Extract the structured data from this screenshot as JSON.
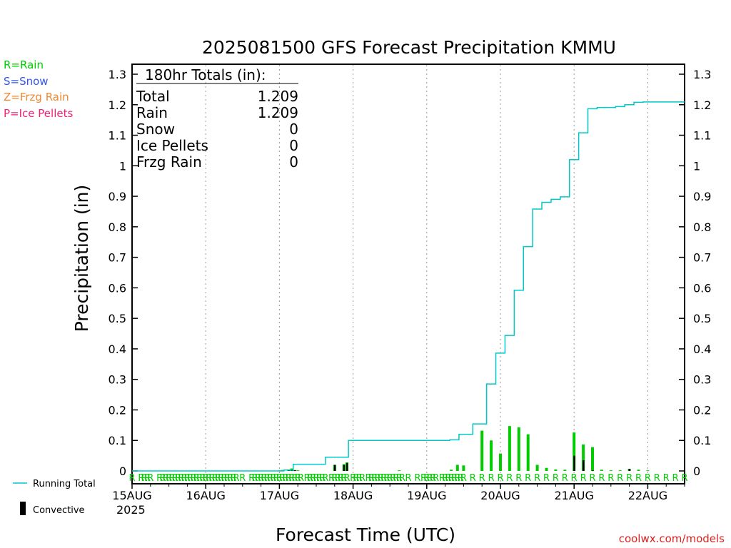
{
  "chart_data": {
    "type": "line",
    "title": "2025081500 GFS Forecast Precipitation KMMU",
    "xlabel": "Forecast Time (UTC)",
    "ylabel": "Precipitation (in)",
    "ylim": [
      0,
      1.3
    ],
    "yticks": [
      "0",
      "0.1",
      "0.2",
      "0.3",
      "0.4",
      "0.5",
      "0.6",
      "0.7",
      "0.8",
      "0.9",
      "1",
      "1.1",
      "1.2",
      "1.3"
    ],
    "xlim_hours": [
      0,
      180
    ],
    "xtick_labels": [
      "15AUG",
      "16AUG",
      "17AUG",
      "18AUG",
      "19AUG",
      "20AUG",
      "21AUG",
      "22AUG"
    ],
    "year_label": "2025",
    "grid": "vertical dotted at day boundaries",
    "legend_ptype": [
      {
        "label": "R=Rain",
        "color": "#00cc00"
      },
      {
        "label": "S=Snow",
        "color": "#3355ee"
      },
      {
        "label": "Z=Frzg Rain",
        "color": "#ee8833"
      },
      {
        "label": "P=Ice Pellets",
        "color": "#ee2277"
      }
    ],
    "legend_bottom": {
      "running_total": "Running Total",
      "convective": "Convective",
      "running_total_color": "#00c8c8"
    },
    "totals_box": {
      "header": "180hr Totals (in):",
      "rows": [
        {
          "label": "Total",
          "value": "1.209"
        },
        {
          "label": "Rain",
          "value": "1.209"
        },
        {
          "label": "Snow",
          "value": "0"
        },
        {
          "label": "Ice Pellets",
          "value": "0"
        },
        {
          "label": "Frzg Rain",
          "value": "0"
        }
      ]
    },
    "credit": "coolwx.com/models",
    "series": [
      {
        "name": "Running Total",
        "color": "#00c8c8",
        "x": [
          0,
          48,
          51,
          54,
          60,
          66,
          69,
          72,
          75,
          78,
          81,
          84,
          87,
          90,
          93,
          96,
          99,
          102,
          105,
          108,
          114,
          117,
          120,
          123,
          126,
          129,
          132,
          135,
          138,
          141,
          144,
          147,
          150,
          153,
          156,
          159,
          162,
          165,
          168,
          171,
          174,
          177,
          180
        ],
        "y": [
          0,
          0,
          0.003,
          0.022,
          0.022,
          0.045,
          0.045,
          0.1,
          0.1,
          0.1,
          0.1,
          0.1,
          0.1,
          0.1,
          0.1,
          0.1,
          0.1,
          0.1,
          0.102,
          0.12,
          0.154,
          0.285,
          0.386,
          0.444,
          0.592,
          0.735,
          0.858,
          0.88,
          0.89,
          0.898,
          1.02,
          1.108,
          1.187,
          1.191,
          1.191,
          1.194,
          1.2,
          1.208,
          1.209,
          1.209,
          1.209,
          1.209,
          1.209
        ]
      }
    ],
    "bars_total": {
      "color": "#00cc00",
      "x": [
        48,
        49,
        51,
        52,
        53,
        54,
        66,
        69,
        70,
        87,
        104,
        106,
        108,
        114,
        117,
        120,
        123,
        126,
        129,
        132,
        135,
        138,
        141,
        144,
        147,
        150,
        153,
        156,
        159,
        162,
        165,
        168
      ],
      "y": [
        0.002,
        0.003,
        0.005,
        0.008,
        0.003,
        0.002,
        0.02,
        0.022,
        0.028,
        0.002,
        0.004,
        0.02,
        0.018,
        0.132,
        0.1,
        0.057,
        0.147,
        0.143,
        0.12,
        0.02,
        0.01,
        0.005,
        0.004,
        0.126,
        0.087,
        0.078,
        0.004,
        0.002,
        0.002,
        0.007,
        0.004,
        0.002
      ]
    },
    "bars_convective": {
      "color": "#000000",
      "x": [
        51,
        52,
        53,
        66,
        69,
        70,
        144,
        147,
        150,
        162
      ],
      "y": [
        0.003,
        0.005,
        0.002,
        0.02,
        0.02,
        0.026,
        0.05,
        0.035,
        0.002,
        0.007
      ]
    },
    "ptype_marks": {
      "symbol": "R",
      "color": "#00cc00",
      "x": [
        0,
        3,
        4,
        5,
        6,
        9,
        10,
        11,
        12,
        13,
        14,
        15,
        16,
        17,
        18,
        19,
        20,
        21,
        22,
        23,
        24,
        25,
        26,
        27,
        28,
        29,
        30,
        31,
        32,
        33,
        34,
        36,
        39,
        40,
        41,
        42,
        43,
        44,
        45,
        46,
        47,
        48,
        49,
        50,
        51,
        52,
        53,
        54,
        55,
        57,
        58,
        59,
        60,
        61,
        62,
        63,
        65,
        66,
        67,
        68,
        69,
        70,
        72,
        73,
        74,
        75,
        77,
        78,
        79,
        80,
        81,
        82,
        83,
        84,
        85,
        86,
        87,
        88,
        90,
        93,
        95,
        96,
        97,
        98,
        99,
        101,
        102,
        103,
        104,
        105,
        106,
        107,
        108,
        111,
        114,
        117,
        120,
        123,
        126,
        129,
        132,
        135,
        138,
        141,
        144,
        147,
        150,
        153,
        156,
        159,
        162,
        165,
        168,
        171,
        174,
        177,
        180
      ]
    }
  }
}
